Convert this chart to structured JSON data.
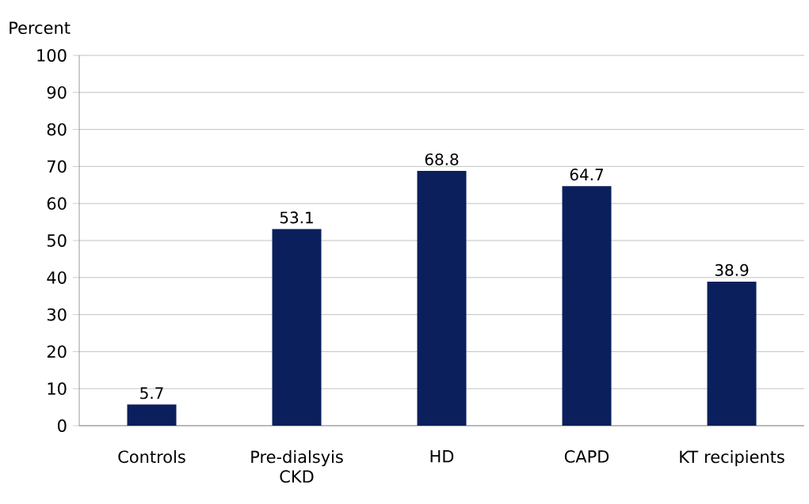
{
  "chart_data": {
    "type": "bar",
    "ylabel": "Percent",
    "categories": [
      "Controls",
      "Pre-dialsyis CKD",
      "HD",
      "CAPD",
      "KT recipients"
    ],
    "values": [
      5.7,
      53.1,
      68.8,
      64.7,
      38.9
    ],
    "color": "#0b1f5c",
    "ylim": [
      0,
      100
    ],
    "yticks": [
      0,
      10,
      20,
      30,
      40,
      50,
      60,
      70,
      80,
      90,
      100
    ],
    "grid": "y",
    "data_labels": true
  }
}
